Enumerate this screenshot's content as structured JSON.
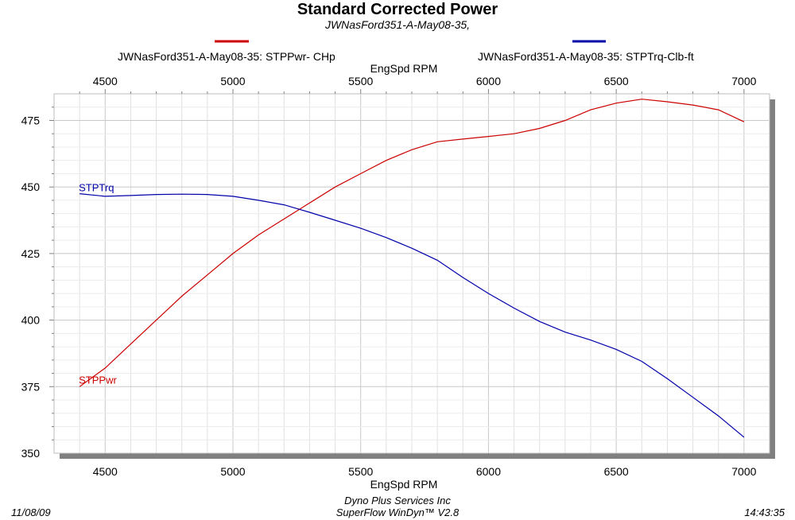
{
  "chart_data": {
    "type": "line",
    "title": "Standard Corrected Power",
    "subtitle": "JWNasFord351-A-May08-35,",
    "xlabel_top": "EngSpd  RPM",
    "xlabel_bottom": "EngSpd  RPM",
    "xlim": [
      4300,
      7100
    ],
    "ylim": [
      350,
      485
    ],
    "x_ticks": [
      4500,
      5000,
      5500,
      6000,
      6500,
      7000
    ],
    "y_ticks": [
      350,
      375,
      400,
      425,
      450,
      475
    ],
    "grid": true,
    "legend_position": "top",
    "series": [
      {
        "name": "JWNasFord351-A-May08-35: STPPwr- CHp",
        "label": "STPPwr",
        "color": "#cc0000",
        "x": [
          4400,
          4500,
          4600,
          4700,
          4800,
          4900,
          5000,
          5100,
          5200,
          5300,
          5400,
          5500,
          5600,
          5700,
          5800,
          5900,
          6000,
          6100,
          6200,
          6300,
          6400,
          6500,
          6600,
          6700,
          6800,
          6900,
          7000
        ],
        "values": [
          375,
          382,
          391,
          400,
          409,
          417,
          425,
          432,
          438,
          444,
          450,
          455,
          460,
          464,
          467,
          468,
          469,
          470,
          472,
          475,
          479,
          481.5,
          483,
          482,
          480.8,
          479,
          474.5
        ]
      },
      {
        "name": "JWNasFord351-A-May08-35: STPTrq-Clb-ft",
        "label": "STPTrq",
        "color": "#0000aa",
        "x": [
          4400,
          4500,
          4600,
          4700,
          4800,
          4900,
          5000,
          5100,
          5200,
          5300,
          5400,
          5500,
          5600,
          5700,
          5800,
          5900,
          6000,
          6100,
          6200,
          6300,
          6400,
          6500,
          6600,
          6700,
          6800,
          6900,
          7000
        ],
        "values": [
          447.5,
          446.5,
          446.8,
          447.2,
          447.3,
          447.2,
          446.5,
          445,
          443.3,
          440.5,
          437.5,
          434.5,
          431,
          427,
          422.5,
          416,
          410,
          404.5,
          399.5,
          395.5,
          392.5,
          389,
          384.5,
          378,
          371,
          364,
          356
        ]
      }
    ]
  },
  "footer": {
    "date": "11/08/09",
    "time": "14:43:35",
    "company": "Dyno Plus Services Inc",
    "software": "SuperFlow WinDyn™ V2.8"
  }
}
